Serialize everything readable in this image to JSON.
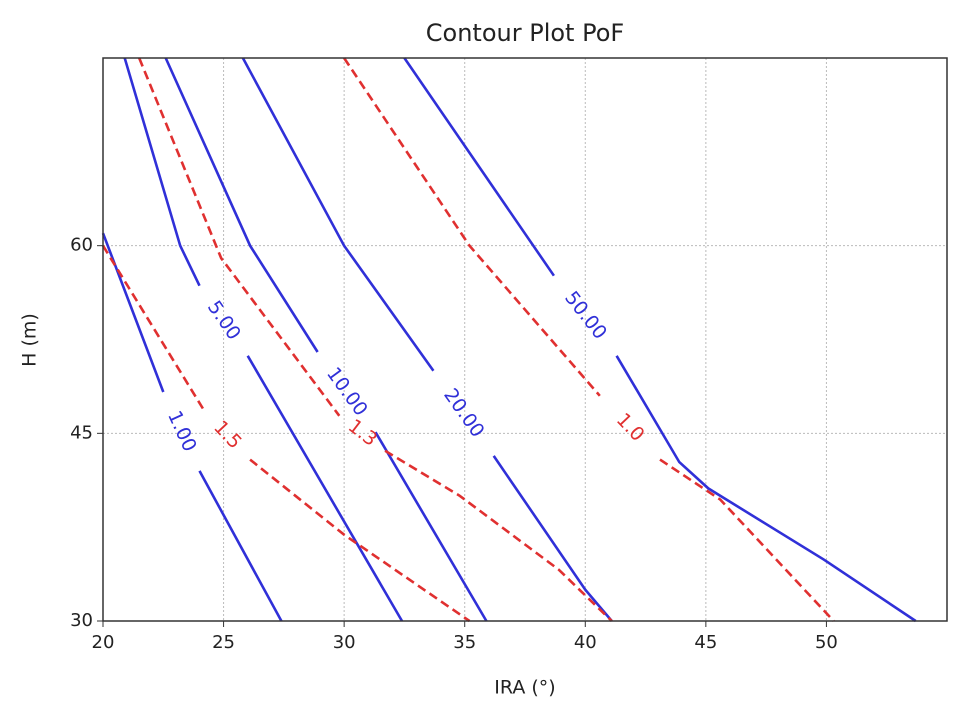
{
  "chart_data": {
    "type": "contour",
    "title": "Contour Plot PoF",
    "x_label": "IRA (°)",
    "y_label": "H (m)",
    "xlim": [
      20,
      55
    ],
    "ylim": [
      30,
      75
    ],
    "xticks": [
      20,
      25,
      30,
      35,
      40,
      45,
      50
    ],
    "yticks": [
      30,
      45,
      60
    ],
    "grid": true,
    "series": [
      {
        "name": "1.00",
        "color": "#3030d8",
        "dashed": false,
        "x": [
          20,
          22.5,
          null,
          24,
          27.4
        ],
        "values": [
          61,
          48.3,
          null,
          42,
          30
        ]
      },
      {
        "name": "5.00",
        "color": "#3030d8",
        "dashed": false,
        "x": [
          20.9,
          23.2,
          24,
          null,
          26,
          32.4
        ],
        "values": [
          75,
          60,
          56.8,
          null,
          51.2,
          30
        ]
      },
      {
        "name": "10.00",
        "color": "#3030d8",
        "dashed": false,
        "x": [
          22.6,
          26.1,
          28.9,
          null,
          31.3,
          35.9
        ],
        "values": [
          75,
          60,
          51.5,
          null,
          45.1,
          30
        ]
      },
      {
        "name": "20.00",
        "color": "#3030d8",
        "dashed": false,
        "x": [
          25.8,
          30,
          33.7,
          null,
          36.2,
          40,
          41.1
        ],
        "values": [
          75,
          60,
          50,
          null,
          43.2,
          32.5,
          30
        ]
      },
      {
        "name": "50.00",
        "color": "#3030d8",
        "dashed": false,
        "x": [
          32.5,
          38.7,
          null,
          41.3,
          43.9,
          45.1,
          49.9,
          53.7
        ],
        "values": [
          75,
          57.6,
          null,
          51.2,
          42.7,
          40.6,
          34.9,
          30
        ]
      },
      {
        "name": "1.5",
        "color": "#e03030",
        "dashed": true,
        "x": [
          20,
          24.2,
          null,
          26.1,
          30,
          35.2
        ],
        "values": [
          60,
          46.8,
          null,
          42.9,
          36.9,
          30
        ]
      },
      {
        "name": "1.3",
        "color": "#e03030",
        "dashed": true,
        "x": [
          21.5,
          24.9,
          29.8,
          null,
          31.7,
          34.8,
          38.9,
          41.1
        ],
        "values": [
          75,
          59,
          46.4,
          null,
          43.6,
          40,
          34.1,
          30
        ]
      },
      {
        "name": "1.0",
        "color": "#e03030",
        "dashed": true,
        "x": [
          30,
          35.2,
          40.6,
          null,
          43.1,
          45.6,
          50.3
        ],
        "values": [
          75,
          60,
          48,
          null,
          42.9,
          39.7,
          30
        ]
      }
    ]
  }
}
